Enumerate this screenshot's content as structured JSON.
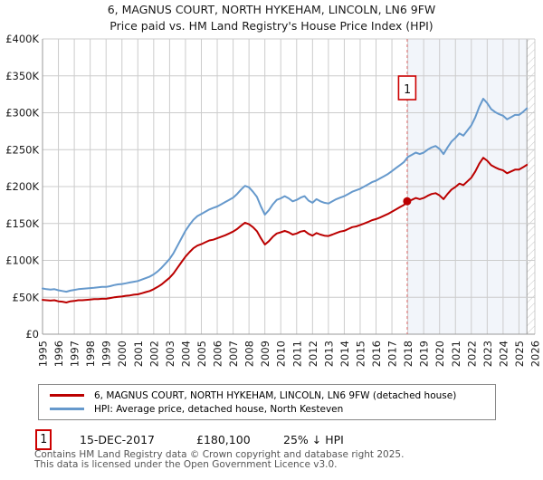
{
  "title": "6, MAGNUS COURT, NORTH HYKEHAM, LINCOLN, LN6 9FW",
  "subtitle": "Price paid vs. HM Land Registry's House Price Index (HPI)",
  "chart_data": {
    "type": "line",
    "unit": "GBP thousands",
    "ylim": [
      0,
      400
    ],
    "grid": true,
    "legend_position": "bottom",
    "y_ticks": [
      {
        "v": 0,
        "label": "£0"
      },
      {
        "v": 50,
        "label": "£50K"
      },
      {
        "v": 100,
        "label": "£100K"
      },
      {
        "v": 150,
        "label": "£150K"
      },
      {
        "v": 200,
        "label": "£200K"
      },
      {
        "v": 250,
        "label": "£250K"
      },
      {
        "v": 300,
        "label": "£300K"
      },
      {
        "v": 350,
        "label": "£350K"
      },
      {
        "v": 400,
        "label": "£400K"
      }
    ],
    "x_ticks": [
      1995,
      1996,
      1997,
      1998,
      1999,
      2000,
      2001,
      2002,
      2003,
      2004,
      2005,
      2006,
      2007,
      2008,
      2009,
      2010,
      2011,
      2012,
      2013,
      2014,
      2015,
      2016,
      2017,
      2018,
      2019,
      2020,
      2021,
      2022,
      2023,
      2024,
      2025,
      2026
    ],
    "x": [
      1995.0,
      1995.25,
      1995.5,
      1995.75,
      1996.0,
      1996.25,
      1996.5,
      1996.75,
      1997.0,
      1997.25,
      1997.5,
      1997.75,
      1998.0,
      1998.25,
      1998.5,
      1998.75,
      1999.0,
      1999.25,
      1999.5,
      1999.75,
      2000.0,
      2000.25,
      2000.5,
      2000.75,
      2001.0,
      2001.25,
      2001.5,
      2001.75,
      2002.0,
      2002.25,
      2002.5,
      2002.75,
      2003.0,
      2003.25,
      2003.5,
      2003.75,
      2004.0,
      2004.25,
      2004.5,
      2004.75,
      2005.0,
      2005.25,
      2005.5,
      2005.75,
      2006.0,
      2006.25,
      2006.5,
      2006.75,
      2007.0,
      2007.25,
      2007.5,
      2007.75,
      2008.0,
      2008.25,
      2008.5,
      2008.75,
      2009.0,
      2009.25,
      2009.5,
      2009.75,
      2010.0,
      2010.25,
      2010.5,
      2010.75,
      2011.0,
      2011.25,
      2011.5,
      2011.75,
      2012.0,
      2012.25,
      2012.5,
      2012.75,
      2013.0,
      2013.25,
      2013.5,
      2013.75,
      2014.0,
      2014.25,
      2014.5,
      2014.75,
      2015.0,
      2015.25,
      2015.5,
      2015.75,
      2016.0,
      2016.25,
      2016.5,
      2016.75,
      2017.0,
      2017.25,
      2017.5,
      2017.75,
      2018.0,
      2018.25,
      2018.5,
      2018.75,
      2019.0,
      2019.25,
      2019.5,
      2019.75,
      2020.0,
      2020.25,
      2020.5,
      2020.75,
      2021.0,
      2021.25,
      2021.5,
      2021.75,
      2022.0,
      2022.25,
      2022.5,
      2022.75,
      2023.0,
      2023.25,
      2023.5,
      2023.75,
      2024.0,
      2024.25,
      2024.5,
      2024.75,
      2025.0,
      2025.25,
      2025.5
    ],
    "series": [
      {
        "name": "6, MAGNUS COURT, NORTH HYKEHAM, LINCOLN, LN6 9FW (detached house)",
        "color": "#bb0000",
        "values": [
          46.5,
          46.0,
          45.5,
          46.0,
          44.5,
          44.0,
          43.0,
          44.5,
          45.0,
          46.0,
          46.0,
          46.5,
          47.0,
          47.5,
          47.5,
          48.0,
          48.0,
          49.0,
          50.0,
          50.5,
          51.0,
          52.0,
          52.5,
          53.5,
          54.0,
          55.5,
          57.0,
          58.5,
          61.0,
          64.0,
          67.5,
          72.0,
          76.5,
          82.5,
          90.0,
          97.5,
          105.0,
          111.0,
          116.5,
          120.0,
          122.0,
          124.5,
          127.0,
          128.0,
          130.0,
          132.0,
          134.0,
          136.5,
          139.0,
          142.5,
          147.0,
          151.0,
          149.0,
          145.0,
          139.5,
          130.0,
          121.5,
          126.0,
          132.0,
          136.5,
          138.0,
          140.0,
          138.0,
          135.0,
          136.5,
          139.0,
          140.0,
          136.0,
          133.5,
          137.0,
          135.0,
          133.5,
          133.0,
          135.0,
          137.0,
          139.0,
          140.0,
          142.5,
          145.0,
          146.0,
          148.0,
          150.0,
          152.0,
          154.5,
          156.0,
          158.0,
          160.5,
          163.0,
          166.0,
          169.0,
          172.0,
          175.0,
          180.1,
          182.0,
          184.5,
          183.0,
          184.5,
          187.5,
          190.0,
          191.0,
          188.0,
          183.0,
          190.0,
          196.0,
          199.5,
          204.0,
          202.0,
          207.0,
          212.0,
          220.5,
          231.0,
          239.0,
          235.0,
          229.0,
          226.0,
          223.5,
          222.0,
          218.0,
          220.5,
          223.0,
          223.0,
          226.0,
          229.5
        ]
      },
      {
        "name": "HPI: Average price, detached house, North Kesteven",
        "color": "#6699cc",
        "values": [
          62.0,
          61.0,
          60.5,
          61.0,
          59.5,
          58.5,
          57.5,
          59.0,
          60.0,
          61.0,
          61.5,
          62.0,
          62.5,
          63.0,
          63.5,
          64.0,
          64.0,
          65.0,
          66.5,
          67.5,
          68.0,
          69.0,
          70.0,
          71.0,
          72.0,
          74.0,
          76.0,
          78.0,
          81.0,
          85.0,
          90.0,
          96.0,
          102.0,
          110.0,
          120.0,
          130.0,
          140.0,
          148.0,
          155.0,
          160.0,
          163.0,
          166.0,
          169.0,
          171.0,
          173.0,
          176.0,
          179.0,
          182.0,
          185.0,
          190.0,
          196.0,
          201.0,
          199.0,
          193.0,
          186.0,
          173.0,
          162.0,
          168.0,
          176.0,
          182.0,
          184.0,
          187.0,
          184.0,
          180.0,
          182.0,
          185.0,
          187.0,
          181.0,
          178.0,
          183.0,
          180.0,
          178.0,
          177.0,
          180.0,
          183.0,
          185.0,
          187.0,
          190.0,
          193.0,
          195.0,
          197.0,
          200.0,
          203.0,
          206.0,
          208.0,
          211.0,
          214.0,
          217.0,
          221.0,
          225.0,
          229.0,
          233.0,
          240.0,
          243.0,
          246.0,
          244.0,
          246.0,
          250.0,
          253.0,
          255.0,
          251.0,
          244.0,
          253.0,
          261.0,
          266.0,
          272.0,
          269.0,
          276.0,
          283.0,
          294.0,
          308.0,
          319.0,
          313.0,
          305.0,
          301.0,
          298.0,
          296.0,
          291.0,
          294.0,
          297.0,
          297.0,
          301.0,
          306.0
        ]
      }
    ],
    "sale_point": {
      "x": 2017.96,
      "v": 180.1,
      "label": "1"
    },
    "shade_start_x": 2017.96,
    "hatch_start_x": 2025.5,
    "colors": {
      "grid": "#cccccc",
      "axis": "#999999",
      "dashed_line": "#e57373",
      "shade": "rgba(110,145,200,0.09)",
      "hatch": "#c4c4c4",
      "marker_box_border": "#cc0000",
      "tick_text": "#1a1a1a"
    }
  },
  "legend": {
    "items": [
      {
        "label": "6, MAGNUS COURT, NORTH HYKEHAM, LINCOLN, LN6 9FW (detached house)",
        "color": "#bb0000"
      },
      {
        "label": "HPI: Average price, detached house, North Kesteven",
        "color": "#6699cc"
      }
    ]
  },
  "annotation": {
    "index": "1",
    "date": "15-DEC-2017",
    "price": "£180,100",
    "hpi_note": "25% ↓ HPI"
  },
  "footer": {
    "line1": "Contains HM Land Registry data © Crown copyright and database right 2025.",
    "line2": "This data is licensed under the Open Government Licence v3.0."
  }
}
